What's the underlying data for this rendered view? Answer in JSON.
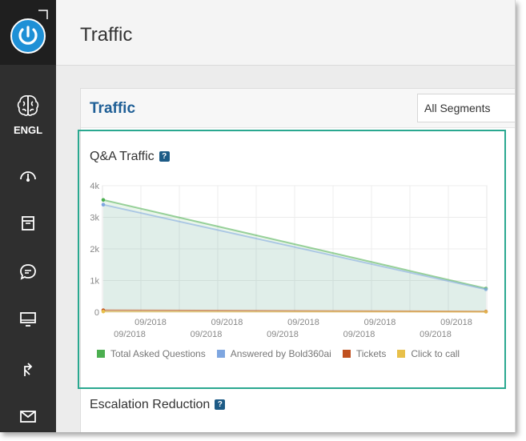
{
  "sidebar": {
    "brand_label": "ENGL",
    "items": [
      {
        "icon": "dashboard-gauge-icon"
      },
      {
        "icon": "archive-box-icon"
      },
      {
        "icon": "chat-bubble-icon"
      },
      {
        "icon": "monitor-icon"
      },
      {
        "icon": "routing-arrow-icon"
      },
      {
        "icon": "envelope-icon"
      }
    ]
  },
  "header": {
    "title": "Traffic"
  },
  "panel": {
    "title": "Traffic",
    "segment_select": {
      "value": "All Segments"
    }
  },
  "qa_section": {
    "title": "Q&A Traffic",
    "help": "?"
  },
  "escalation_section": {
    "title": "Escalation Reduction",
    "help": "?"
  },
  "colors": {
    "accent": "#1e90d6",
    "highlight": "#2aa890",
    "total_asked": "#4caf50",
    "answered": "#7ea6e0",
    "tickets": "#c0501f",
    "click_to_call": "#e8c04a"
  },
  "chart_data": {
    "type": "area",
    "yticks": [
      "0",
      "1k",
      "2k",
      "3k",
      "4k"
    ],
    "ylim": [
      0,
      4000
    ],
    "xticks_upper": [
      "09/2018",
      "09/2018",
      "09/2018",
      "09/2018",
      "09/2018"
    ],
    "xticks_lower": [
      "09/2018",
      "09/2018",
      "09/2018",
      "09/2018",
      "09/2018"
    ],
    "series": [
      {
        "name": "Total Asked Questions",
        "start": 3550,
        "end": 750
      },
      {
        "name": "Answered by Bold360ai",
        "start": 3400,
        "end": 720
      },
      {
        "name": "Tickets",
        "start": 60,
        "end": 20
      },
      {
        "name": "Click to call",
        "start": 20,
        "end": 10
      }
    ],
    "grid": true
  }
}
